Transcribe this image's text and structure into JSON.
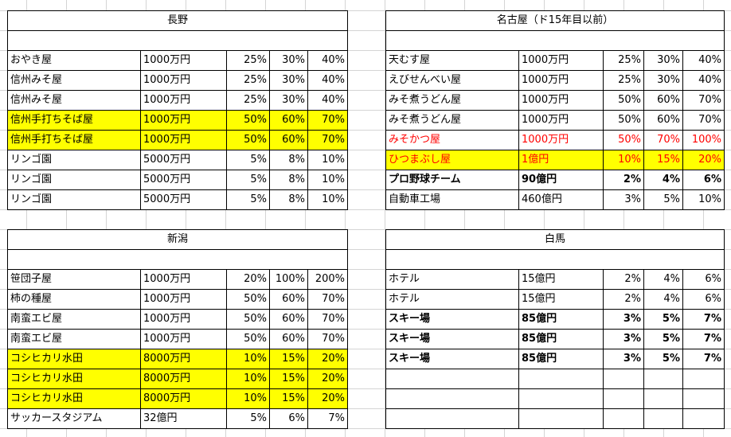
{
  "blocks": [
    {
      "id": "nagano",
      "title": "長野",
      "rows": [
        {
          "name": "おやき屋",
          "price": "1000万円",
          "p1": "25%",
          "p2": "30%",
          "p3": "40%",
          "style": ""
        },
        {
          "name": "信州みそ屋",
          "price": "1000万円",
          "p1": "25%",
          "p2": "30%",
          "p3": "40%",
          "style": ""
        },
        {
          "name": "信州みそ屋",
          "price": "1000万円",
          "p1": "25%",
          "p2": "30%",
          "p3": "40%",
          "style": ""
        },
        {
          "name": "信州手打ちそば屋",
          "price": "1000万円",
          "p1": "50%",
          "p2": "60%",
          "p3": "70%",
          "style": "hl"
        },
        {
          "name": "信州手打ちそば屋",
          "price": "1000万円",
          "p1": "50%",
          "p2": "60%",
          "p3": "70%",
          "style": "hl"
        },
        {
          "name": "リンゴ園",
          "price": "5000万円",
          "p1": "5%",
          "p2": "8%",
          "p3": "10%",
          "style": ""
        },
        {
          "name": "リンゴ園",
          "price": "5000万円",
          "p1": "5%",
          "p2": "8%",
          "p3": "10%",
          "style": ""
        },
        {
          "name": "リンゴ園",
          "price": "5000万円",
          "p1": "5%",
          "p2": "8%",
          "p3": "10%",
          "style": ""
        }
      ]
    },
    {
      "id": "nagoya",
      "title": "名古屋（ド15年目以前）",
      "rows": [
        {
          "name": "天むす屋",
          "price": "1000万円",
          "p1": "25%",
          "p2": "30%",
          "p3": "40%",
          "style": ""
        },
        {
          "name": "えびせんべい屋",
          "price": "1000万円",
          "p1": "25%",
          "p2": "30%",
          "p3": "40%",
          "style": ""
        },
        {
          "name": "みそ煮うどん屋",
          "price": "1000万円",
          "p1": "50%",
          "p2": "60%",
          "p3": "70%",
          "style": ""
        },
        {
          "name": "みそ煮うどん屋",
          "price": "1000万円",
          "p1": "50%",
          "p2": "60%",
          "p3": "70%",
          "style": ""
        },
        {
          "name": "みそかつ屋",
          "price": "1000万円",
          "p1": "50%",
          "p2": "70%",
          "p3": "100%",
          "style": "red"
        },
        {
          "name": "ひつまぶし屋",
          "price": "1億円",
          "p1": "10%",
          "p2": "15%",
          "p3": "20%",
          "style": "hl red"
        },
        {
          "name": "プロ野球チーム",
          "price": "90億円",
          "p1": "2%",
          "p2": "4%",
          "p3": "6%",
          "style": "bold"
        },
        {
          "name": "自動車工場",
          "price": "460億円",
          "p1": "3%",
          "p2": "5%",
          "p3": "10%",
          "style": ""
        }
      ]
    },
    {
      "id": "niigata",
      "title": "新潟",
      "rows": [
        {
          "name": "笹団子屋",
          "price": "1000万円",
          "p1": "20%",
          "p2": "100%",
          "p3": "200%",
          "style": ""
        },
        {
          "name": "柿の種屋",
          "price": "1000万円",
          "p1": "50%",
          "p2": "60%",
          "p3": "70%",
          "style": ""
        },
        {
          "name": "南蛮エビ屋",
          "price": "1000万円",
          "p1": "50%",
          "p2": "60%",
          "p3": "70%",
          "style": ""
        },
        {
          "name": "南蛮エビ屋",
          "price": "1000万円",
          "p1": "50%",
          "p2": "60%",
          "p3": "70%",
          "style": ""
        },
        {
          "name": "コシヒカリ水田",
          "price": "8000万円",
          "p1": "10%",
          "p2": "15%",
          "p3": "20%",
          "style": "hl"
        },
        {
          "name": "コシヒカリ水田",
          "price": "8000万円",
          "p1": "10%",
          "p2": "15%",
          "p3": "20%",
          "style": "hl"
        },
        {
          "name": "コシヒカリ水田",
          "price": "8000万円",
          "p1": "10%",
          "p2": "15%",
          "p3": "20%",
          "style": "hl"
        },
        {
          "name": "サッカースタジアム",
          "price": "32億円",
          "p1": "5%",
          "p2": "6%",
          "p3": "7%",
          "style": ""
        }
      ]
    },
    {
      "id": "hakuba",
      "title": "白馬",
      "rows": [
        {
          "name": "ホテル",
          "price": "15億円",
          "p1": "2%",
          "p2": "4%",
          "p3": "6%",
          "style": ""
        },
        {
          "name": "ホテル",
          "price": "15億円",
          "p1": "2%",
          "p2": "4%",
          "p3": "6%",
          "style": ""
        },
        {
          "name": "スキー場",
          "price": "85億円",
          "p1": "3%",
          "p2": "5%",
          "p3": "7%",
          "style": "bold"
        },
        {
          "name": "スキー場",
          "price": "85億円",
          "p1": "3%",
          "p2": "5%",
          "p3": "7%",
          "style": "bold"
        },
        {
          "name": "スキー場",
          "price": "85億円",
          "p1": "3%",
          "p2": "5%",
          "p3": "7%",
          "style": "bold"
        },
        {
          "name": "",
          "price": "",
          "p1": "",
          "p2": "",
          "p3": "",
          "style": "blank"
        },
        {
          "name": "",
          "price": "",
          "p1": "",
          "p2": "",
          "p3": "",
          "style": "blank"
        },
        {
          "name": "",
          "price": "",
          "p1": "",
          "p2": "",
          "p3": "",
          "style": "blank"
        }
      ]
    }
  ]
}
